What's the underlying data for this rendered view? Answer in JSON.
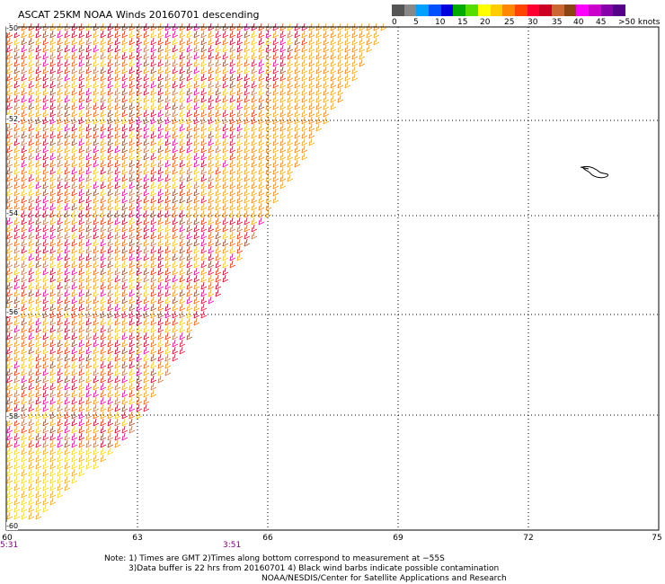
{
  "title": "ASCAT 25KM NOAA Winds 20160701 descending",
  "legend": {
    "colors": [
      "#555555",
      "#888888",
      "#00a0ff",
      "#0050ff",
      "#0000dd",
      "#00aa00",
      "#55dd00",
      "#ffff00",
      "#ffcc00",
      "#ff8800",
      "#ff4400",
      "#ff0033",
      "#cc0022",
      "#cc6633",
      "#8b4513",
      "#ff00ff",
      "#cc00cc",
      "#8800aa",
      "#550088"
    ],
    "labels": [
      "0",
      "5",
      "10",
      "15",
      "20",
      "25",
      "30",
      "35",
      "40",
      "45",
      ">50 knots"
    ]
  },
  "axes": {
    "x_labels": [
      "60",
      "63",
      "66",
      "69",
      "72",
      "75"
    ],
    "y_labels": [
      "-50",
      "-52",
      "-54",
      "-56",
      "-58",
      "-60"
    ]
  },
  "times": [
    "5:31",
    "3:51"
  ],
  "notes": [
    "Note: 1) Times are GMT 2)Times along bottom correspond to measurement at −55S",
    "3)Data buffer is 22 hrs from 20160701 4) Black wind barbs indicate possible contamination",
    "NOAA/NESDIS/Center for Satellite Applications and Research"
  ]
}
